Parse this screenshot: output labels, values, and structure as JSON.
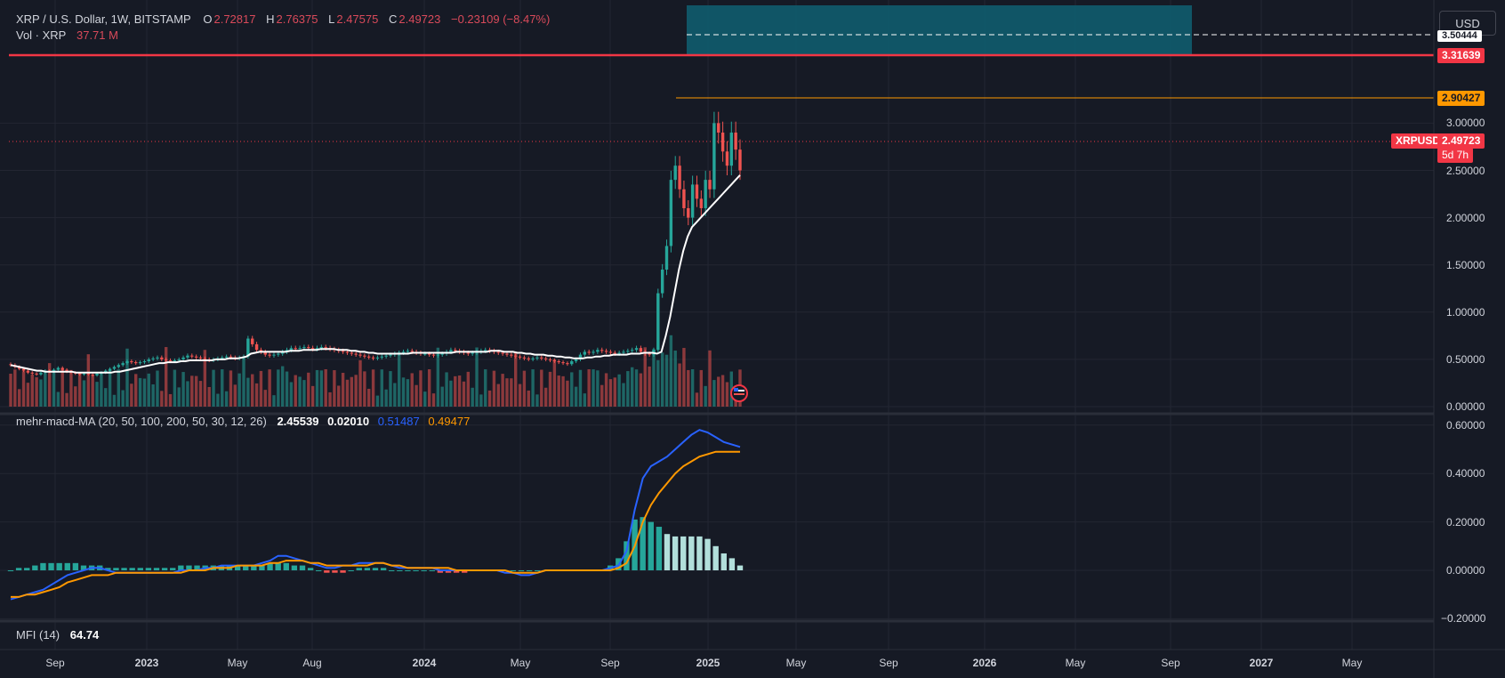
{
  "header": {
    "symbol": "XRP / U.S. Dollar, 1W, BITSTAMP",
    "o_label": "O",
    "o_value": "2.72817",
    "h_label": "H",
    "h_value": "2.76375",
    "l_label": "L",
    "l_value": "2.47575",
    "c_label": "C",
    "c_value": "2.49723",
    "change": "−0.23109 (−8.47%)",
    "vol_label": "Vol · XRP",
    "vol_value": "37.71 M"
  },
  "currency_button": "USD",
  "macd_legend": {
    "name": "mehr-macd-MA (20, 50, 100, 200, 50, 30, 12, 26)",
    "v1": "2.45539",
    "v2": "0.02010",
    "v3": "0.51487",
    "v4": "0.49477"
  },
  "mfi_legend": {
    "name": "MFI (14)",
    "value": "64.74"
  },
  "price_tags": {
    "resistance": "3.31639",
    "fib": "2.90427",
    "symbol": "XRPUSD",
    "last": "2.49723",
    "countdown": "5d 7h",
    "top_partial": "3.50444"
  },
  "colors": {
    "background": "#161a25",
    "up": "#26a69a",
    "down": "#ef5350",
    "resistance": "#f23645",
    "fib": "#ff9800",
    "zone": "#0f5c6e",
    "ma": "#ffffff",
    "macd": "#2962ff",
    "signal": "#ff9800",
    "hist": "#b2dfdb"
  },
  "price_axis": [
    "3.00000",
    "2.50000",
    "2.00000",
    "1.50000",
    "1.00000",
    "0.50000",
    "0.00000"
  ],
  "macd_axis": [
    "0.60000",
    "0.40000",
    "0.20000",
    "0.00000",
    "−0.20000"
  ],
  "time_axis": [
    {
      "label": "Sep",
      "bold": false
    },
    {
      "label": "2023",
      "bold": true
    },
    {
      "label": "May",
      "bold": false
    },
    {
      "label": "Aug",
      "bold": false
    },
    {
      "label": "2024",
      "bold": true
    },
    {
      "label": "May",
      "bold": false
    },
    {
      "label": "Sep",
      "bold": false
    },
    {
      "label": "2025",
      "bold": true
    },
    {
      "label": "May",
      "bold": false
    },
    {
      "label": "Sep",
      "bold": false
    },
    {
      "label": "2026",
      "bold": true
    },
    {
      "label": "May",
      "bold": false
    },
    {
      "label": "Sep",
      "bold": false
    },
    {
      "label": "2027",
      "bold": true
    },
    {
      "label": "May",
      "bold": false
    }
  ],
  "chart_data": {
    "type": "candlestick",
    "interval": "1W",
    "series_name": "XRP / U.S. Dollar",
    "price_ylim": [
      0,
      3.6
    ],
    "horizontal_levels": [
      3.31639,
      2.90427,
      2.49723
    ],
    "last_close": 2.49723,
    "closes": [
      0.44,
      0.42,
      0.4,
      0.38,
      0.36,
      0.35,
      0.34,
      0.36,
      0.38,
      0.37,
      0.39,
      0.41,
      0.39,
      0.37,
      0.36,
      0.35,
      0.34,
      0.35,
      0.34,
      0.33,
      0.35,
      0.36,
      0.38,
      0.4,
      0.42,
      0.44,
      0.46,
      0.48,
      0.47,
      0.46,
      0.47,
      0.48,
      0.5,
      0.51,
      0.52,
      0.5,
      0.49,
      0.48,
      0.49,
      0.5,
      0.52,
      0.54,
      0.53,
      0.52,
      0.51,
      0.5,
      0.49,
      0.5,
      0.51,
      0.52,
      0.53,
      0.52,
      0.51,
      0.52,
      0.53,
      0.72,
      0.66,
      0.6,
      0.58,
      0.55,
      0.54,
      0.55,
      0.56,
      0.58,
      0.6,
      0.62,
      0.61,
      0.62,
      0.63,
      0.62,
      0.61,
      0.62,
      0.63,
      0.62,
      0.61,
      0.6,
      0.59,
      0.58,
      0.57,
      0.56,
      0.55,
      0.54,
      0.53,
      0.52,
      0.51,
      0.52,
      0.53,
      0.54,
      0.55,
      0.56,
      0.57,
      0.58,
      0.59,
      0.58,
      0.57,
      0.56,
      0.56,
      0.55,
      0.54,
      0.55,
      0.56,
      0.58,
      0.6,
      0.59,
      0.58,
      0.57,
      0.56,
      0.57,
      0.58,
      0.59,
      0.6,
      0.59,
      0.58,
      0.57,
      0.56,
      0.55,
      0.54,
      0.53,
      0.52,
      0.51,
      0.5,
      0.51,
      0.52,
      0.51,
      0.5,
      0.49,
      0.48,
      0.47,
      0.46,
      0.45,
      0.48,
      0.5,
      0.55,
      0.58,
      0.57,
      0.58,
      0.6,
      0.59,
      0.58,
      0.57,
      0.56,
      0.57,
      0.58,
      0.59,
      0.6,
      0.62,
      0.58,
      0.56,
      0.55,
      0.6,
      1.2,
      1.45,
      1.7,
      2.4,
      2.55,
      2.3,
      2.1,
      2.0,
      2.35,
      2.2,
      2.1,
      2.4,
      2.3,
      3.0,
      2.9,
      2.7,
      2.55,
      2.9,
      2.72,
      2.5
    ],
    "ma_line": [
      0.44,
      0.43,
      0.42,
      0.41,
      0.4,
      0.39,
      0.38,
      0.38,
      0.37,
      0.37,
      0.37,
      0.37,
      0.37,
      0.37,
      0.37,
      0.36,
      0.36,
      0.36,
      0.36,
      0.36,
      0.36,
      0.36,
      0.36,
      0.36,
      0.37,
      0.37,
      0.38,
      0.39,
      0.4,
      0.41,
      0.42,
      0.43,
      0.44,
      0.45,
      0.46,
      0.46,
      0.47,
      0.47,
      0.47,
      0.48,
      0.48,
      0.49,
      0.49,
      0.49,
      0.49,
      0.49,
      0.49,
      0.5,
      0.5,
      0.5,
      0.51,
      0.51,
      0.51,
      0.52,
      0.53,
      0.56,
      0.57,
      0.58,
      0.58,
      0.58,
      0.58,
      0.58,
      0.58,
      0.58,
      0.59,
      0.59,
      0.59,
      0.6,
      0.6,
      0.6,
      0.6,
      0.61,
      0.61,
      0.61,
      0.61,
      0.6,
      0.6,
      0.6,
      0.59,
      0.59,
      0.58,
      0.58,
      0.57,
      0.57,
      0.56,
      0.56,
      0.56,
      0.56,
      0.56,
      0.56,
      0.56,
      0.56,
      0.57,
      0.57,
      0.57,
      0.57,
      0.57,
      0.57,
      0.57,
      0.57,
      0.57,
      0.57,
      0.58,
      0.58,
      0.58,
      0.58,
      0.58,
      0.58,
      0.58,
      0.58,
      0.59,
      0.59,
      0.59,
      0.58,
      0.58,
      0.58,
      0.57,
      0.57,
      0.56,
      0.56,
      0.55,
      0.55,
      0.55,
      0.54,
      0.54,
      0.53,
      0.53,
      0.52,
      0.52,
      0.51,
      0.51,
      0.51,
      0.52,
      0.52,
      0.53,
      0.53,
      0.54,
      0.54,
      0.55,
      0.55,
      0.55,
      0.55,
      0.56,
      0.56,
      0.56,
      0.57,
      0.57,
      0.57,
      0.56,
      0.58,
      0.75,
      0.95,
      1.2,
      1.45,
      1.65,
      1.8,
      1.9,
      1.95,
      2.0,
      2.05,
      2.1,
      2.15,
      2.2,
      2.25,
      2.3,
      2.35,
      2.4,
      2.45
    ],
    "macd_ylim": [
      -0.25,
      0.65
    ],
    "macd_line": [
      -0.12,
      -0.11,
      -0.1,
      -0.09,
      -0.08,
      -0.06,
      -0.04,
      -0.02,
      -0.01,
      0.0,
      0.01,
      0.01,
      0.0,
      -0.01,
      -0.01,
      -0.01,
      -0.01,
      -0.01,
      -0.01,
      -0.01,
      -0.01,
      0.0,
      0.0,
      0.0,
      0.01,
      0.01,
      0.02,
      0.02,
      0.02,
      0.02,
      0.02,
      0.03,
      0.04,
      0.06,
      0.06,
      0.05,
      0.04,
      0.03,
      0.02,
      0.01,
      0.01,
      0.02,
      0.02,
      0.03,
      0.03,
      0.03,
      0.03,
      0.02,
      0.01,
      0.01,
      0.01,
      0.01,
      0.01,
      0.0,
      0.0,
      0.0,
      0.0,
      0.0,
      0.0,
      0.0,
      0.0,
      -0.01,
      -0.01,
      -0.02,
      -0.02,
      -0.01,
      0.0,
      0.0,
      0.0,
      0.0,
      0.0,
      0.0,
      0.0,
      0.0,
      0.01,
      0.02,
      0.08,
      0.25,
      0.38,
      0.43,
      0.45,
      0.47,
      0.5,
      0.53,
      0.56,
      0.58,
      0.57,
      0.55,
      0.53,
      0.52,
      0.51
    ],
    "signal_line": [
      -0.11,
      -0.11,
      -0.1,
      -0.1,
      -0.09,
      -0.08,
      -0.07,
      -0.05,
      -0.04,
      -0.03,
      -0.02,
      -0.02,
      -0.02,
      -0.01,
      -0.01,
      -0.01,
      -0.01,
      -0.01,
      -0.01,
      -0.01,
      -0.01,
      -0.01,
      0.0,
      0.0,
      0.0,
      0.01,
      0.01,
      0.01,
      0.02,
      0.02,
      0.02,
      0.02,
      0.03,
      0.03,
      0.04,
      0.04,
      0.04,
      0.03,
      0.03,
      0.02,
      0.02,
      0.02,
      0.02,
      0.02,
      0.02,
      0.03,
      0.03,
      0.02,
      0.02,
      0.01,
      0.01,
      0.01,
      0.01,
      0.01,
      0.01,
      0.0,
      0.0,
      0.0,
      0.0,
      0.0,
      0.0,
      0.0,
      -0.01,
      -0.01,
      -0.01,
      -0.01,
      0.0,
      0.0,
      0.0,
      0.0,
      0.0,
      0.0,
      0.0,
      0.0,
      0.0,
      0.01,
      0.03,
      0.1,
      0.2,
      0.27,
      0.32,
      0.36,
      0.4,
      0.43,
      0.45,
      0.47,
      0.48,
      0.49,
      0.49,
      0.49,
      0.49
    ],
    "macd_histogram": [
      0.0,
      0.01,
      0.01,
      0.02,
      0.03,
      0.03,
      0.03,
      0.03,
      0.03,
      0.02,
      0.02,
      0.02,
      0.01,
      0.01,
      0.01,
      0.01,
      0.01,
      0.01,
      0.01,
      0.01,
      0.01,
      0.02,
      0.02,
      0.02,
      0.02,
      0.02,
      0.02,
      0.02,
      0.02,
      0.02,
      0.02,
      0.02,
      0.03,
      0.03,
      0.03,
      0.02,
      0.02,
      0.01,
      0.0,
      -0.01,
      -0.01,
      -0.01,
      0.0,
      0.01,
      0.01,
      0.01,
      0.01,
      0.0,
      0.0,
      0.0,
      0.0,
      0.0,
      0.0,
      -0.01,
      -0.01,
      -0.01,
      -0.01,
      0.0,
      0.0,
      0.0,
      0.0,
      0.0,
      0.0,
      0.0,
      0.0,
      0.0,
      0.0,
      0.0,
      0.0,
      0.0,
      0.0,
      0.0,
      0.0,
      0.0,
      0.02,
      0.05,
      0.12,
      0.21,
      0.22,
      0.2,
      0.18,
      0.15,
      0.14,
      0.14,
      0.14,
      0.14,
      0.13,
      0.1,
      0.07,
      0.05,
      0.02
    ]
  }
}
